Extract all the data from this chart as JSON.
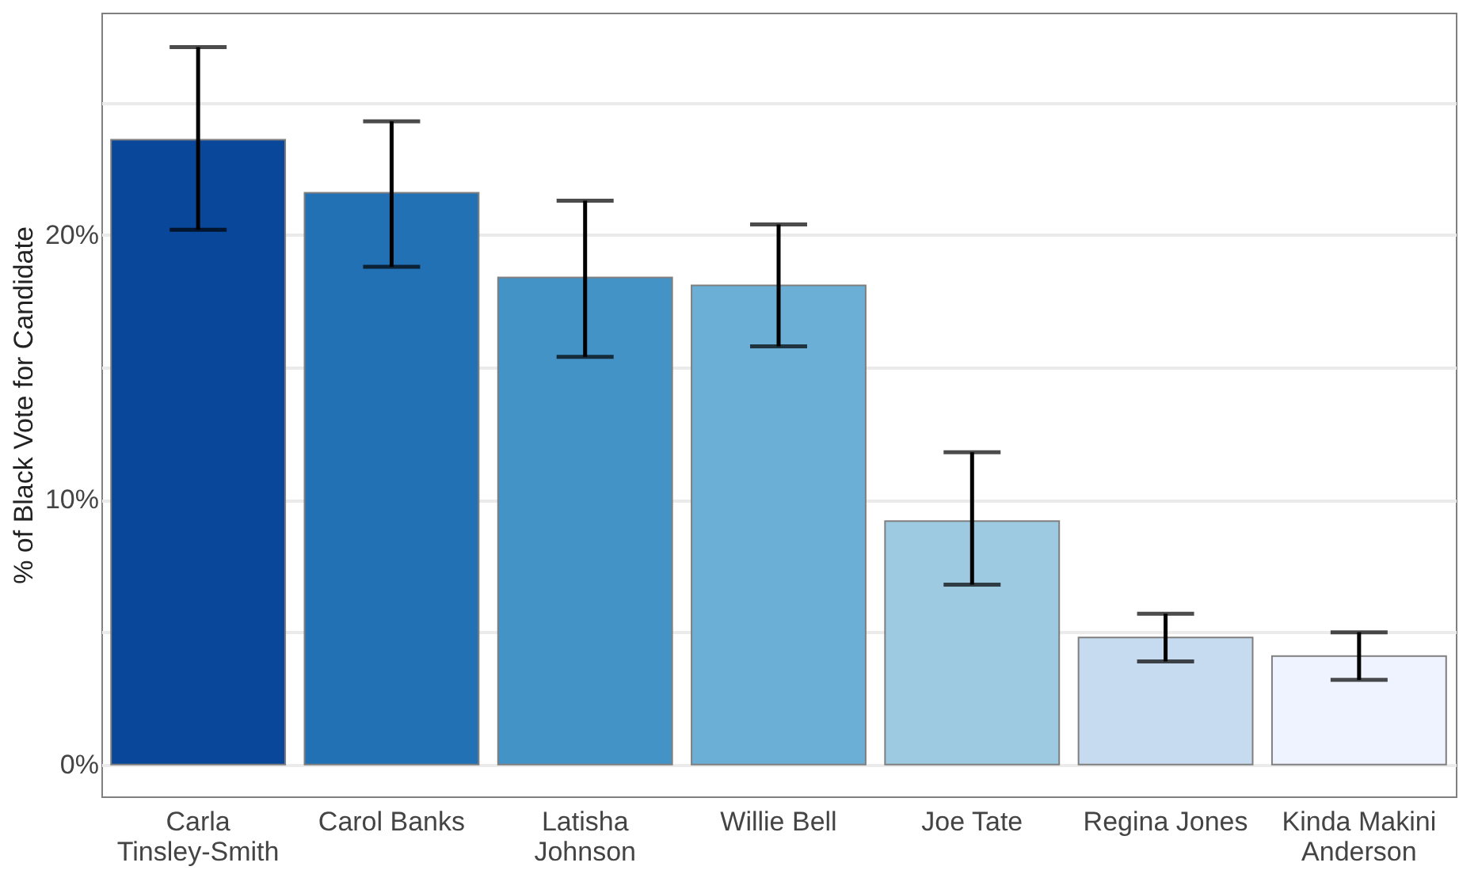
{
  "chart_data": {
    "type": "bar",
    "ylabel": "% of Black Vote for Candidate",
    "categories": [
      "Carla Tinsley-Smith",
      "Carol Banks",
      "Latisha Johnson",
      "Willie Bell",
      "Joe Tate",
      "Regina Jones",
      "Kinda Makini Anderson"
    ],
    "values": [
      23.6,
      21.6,
      18.4,
      18.1,
      9.2,
      4.8,
      4.1
    ],
    "colors": [
      "#08479a",
      "#2271b5",
      "#4393c6",
      "#6baed6",
      "#9ecae1",
      "#c6dbef",
      "#eff3ff"
    ],
    "errors": [
      [
        20.2,
        27.1
      ],
      [
        18.8,
        24.3
      ],
      [
        15.4,
        21.3
      ],
      [
        15.8,
        20.4
      ],
      [
        6.8,
        11.8
      ],
      [
        3.9,
        5.7
      ],
      [
        3.2,
        5.0
      ]
    ],
    "ylim": [
      -1.2,
      28.4
    ],
    "yticks": [
      {
        "value": 0,
        "label": "0%"
      },
      {
        "value": 5,
        "label": null
      },
      {
        "value": 10,
        "label": "10%"
      },
      {
        "value": 15,
        "label": null
      },
      {
        "value": 20,
        "label": "20%"
      },
      {
        "value": 25,
        "label": null
      }
    ],
    "grid": "y"
  }
}
